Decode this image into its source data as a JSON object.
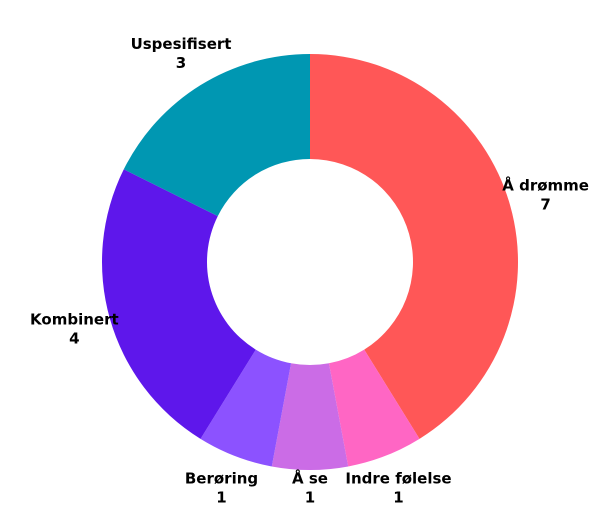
{
  "chart_data": {
    "type": "donut",
    "categories": [
      "Å drømme",
      "Indre følelse",
      "Å se",
      "Berøring",
      "Kombinert",
      "Uspesifisert"
    ],
    "values": [
      7,
      1,
      1,
      1,
      4,
      3
    ],
    "colors": [
      "#ff5757",
      "#ff66c4",
      "#cb6ce6",
      "#8c52ff",
      "#5e17eb",
      "#0097b2"
    ]
  }
}
